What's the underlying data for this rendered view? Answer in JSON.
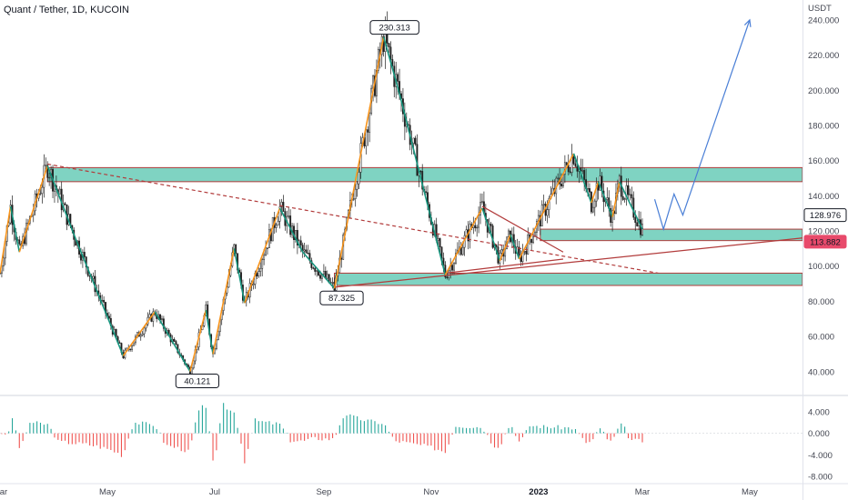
{
  "header": {
    "title": "Quant / Tether, 1D, KUCOIN"
  },
  "colors": {
    "up": "#f7931a",
    "down": "#16957e",
    "zone_fill": "#7fd3c2",
    "zone_border": "#b23b3b",
    "projection": "#4a7fd6",
    "hist_pos": "#26a69a",
    "hist_neg": "#ef5350",
    "price_tag_bg": "#e84a6b"
  },
  "chart_data": [
    {
      "type": "candlestick",
      "title": "Quant / Tether, 1D, KUCOIN",
      "yunit": "USDT",
      "ylim": [
        28,
        242
      ],
      "yticks": [
        "240.000",
        "220.000",
        "200.000",
        "180.000",
        "160.000",
        "140.000",
        "120.000",
        "100.000",
        "80.000",
        "60.000",
        "40.000"
      ],
      "xlim": [
        "2022-03-01",
        "2023-05-31"
      ],
      "xticks": [
        {
          "label": "Mar",
          "date": "2022-03-01"
        },
        {
          "label": "May",
          "date": "2022-05-01"
        },
        {
          "label": "Jul",
          "date": "2022-07-01"
        },
        {
          "label": "Sep",
          "date": "2022-09-01"
        },
        {
          "label": "Nov",
          "date": "2022-11-01"
        },
        {
          "label": "2023",
          "date": "2023-01-01"
        },
        {
          "label": "Mar",
          "date": "2023-03-01"
        },
        {
          "label": "May",
          "date": "2023-05-01"
        }
      ],
      "swing_path": [
        {
          "date": "2022-03-01",
          "value": 96
        },
        {
          "date": "2022-03-07",
          "value": 134
        },
        {
          "date": "2022-03-12",
          "value": 108
        },
        {
          "date": "2022-03-28",
          "value": 157
        },
        {
          "date": "2022-04-12",
          "value": 118
        },
        {
          "date": "2022-05-10",
          "value": 49
        },
        {
          "date": "2022-05-28",
          "value": 74
        },
        {
          "date": "2022-06-17",
          "value": 40.121
        },
        {
          "date": "2022-06-26",
          "value": 75
        },
        {
          "date": "2022-06-30",
          "value": 50
        },
        {
          "date": "2022-07-12",
          "value": 110
        },
        {
          "date": "2022-07-18",
          "value": 79
        },
        {
          "date": "2022-08-07",
          "value": 133
        },
        {
          "date": "2022-08-20",
          "value": 108
        },
        {
          "date": "2022-09-07",
          "value": 87.325
        },
        {
          "date": "2022-10-05",
          "value": 230.313
        },
        {
          "date": "2022-10-14",
          "value": 198
        },
        {
          "date": "2022-11-09",
          "value": 95
        },
        {
          "date": "2022-11-30",
          "value": 133
        },
        {
          "date": "2022-12-10",
          "value": 103
        },
        {
          "date": "2022-12-16",
          "value": 118
        },
        {
          "date": "2022-12-21",
          "value": 104
        },
        {
          "date": "2023-01-21",
          "value": 164
        },
        {
          "date": "2023-01-31",
          "value": 136
        },
        {
          "date": "2023-02-04",
          "value": 148
        },
        {
          "date": "2023-02-12",
          "value": 128
        },
        {
          "date": "2023-02-16",
          "value": 148
        },
        {
          "date": "2023-03-01",
          "value": 121
        }
      ],
      "zones": [
        {
          "from": "2022-03-28",
          "to": "2023-05-31",
          "top": 156,
          "bottom": 148
        },
        {
          "from": "2023-01-02",
          "to": "2023-05-31",
          "top": 121,
          "bottom": 114.5
        },
        {
          "from": "2022-09-07",
          "to": "2023-05-31",
          "top": 96,
          "bottom": 89
        }
      ],
      "trendlines": [
        {
          "style": "dashed",
          "from": {
            "date": "2022-03-28",
            "value": 158
          },
          "to": {
            "date": "2023-03-10",
            "value": 96
          }
        },
        {
          "style": "solid",
          "from": {
            "date": "2022-09-07",
            "value": 88
          },
          "to": {
            "date": "2023-05-31",
            "value": 116
          }
        },
        {
          "style": "solid",
          "from": {
            "date": "2022-11-30",
            "value": 134
          },
          "to": {
            "date": "2023-01-15",
            "value": 108
          }
        },
        {
          "style": "solid",
          "from": {
            "date": "2022-11-09",
            "value": 96
          },
          "to": {
            "date": "2023-01-15",
            "value": 104
          }
        }
      ],
      "projection": [
        {
          "date": "2023-03-08",
          "value": 138
        },
        {
          "date": "2023-03-13",
          "value": 121
        },
        {
          "date": "2023-03-19",
          "value": 141
        },
        {
          "date": "2023-03-24",
          "value": 129
        },
        {
          "date": "2023-05-01",
          "value": 240
        }
      ],
      "annotations": [
        {
          "label": "230.313",
          "date": "2022-10-05",
          "value": 230.313,
          "position": "above"
        },
        {
          "label": "87.325",
          "date": "2022-09-07",
          "value": 87.325,
          "position": "below"
        },
        {
          "label": "40.121",
          "date": "2022-06-17",
          "value": 40.121,
          "position": "below"
        }
      ],
      "price_tags": [
        {
          "label": "128.976",
          "value": 128.976,
          "style": "outline"
        },
        {
          "label": "113.882",
          "value": 113.882,
          "style": "filled"
        }
      ]
    },
    {
      "type": "bar",
      "indicator": "histogram",
      "ylim": [
        -9,
        6.5
      ],
      "yticks": [
        "4.000",
        "0.000",
        "-4.000",
        "-8.000"
      ],
      "xlim": [
        "2022-03-01",
        "2023-05-31"
      ]
    }
  ]
}
